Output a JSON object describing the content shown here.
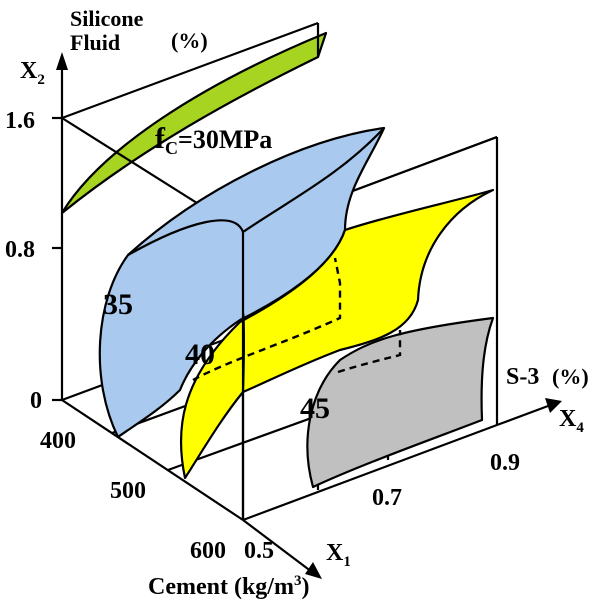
{
  "axes": {
    "x2": {
      "name": "X",
      "sub": "2",
      "label_line1": "Silicone",
      "label_line2": "Fluid",
      "unit": "(%)",
      "ticks": [
        "1.6",
        "0.8",
        "0"
      ]
    },
    "x1": {
      "name": "X",
      "sub": "1",
      "label": "Cement (kg/m",
      "label_sup": "3",
      "label_end": ")",
      "ticks": [
        "400",
        "500",
        "600"
      ]
    },
    "x4": {
      "name": "X",
      "sub": "4",
      "label": "S-3",
      "unit": "(%)",
      "ticks": [
        "0.5",
        "0.7",
        "0.9"
      ]
    }
  },
  "title": {
    "prefix": "f",
    "sub": "C",
    "rest": "=30MPa"
  },
  "contours": [
    {
      "label": "35",
      "color": "#a9c9ee"
    },
    {
      "label": "40",
      "color": "#ffff00"
    },
    {
      "label": "45",
      "color": "#c0c0c0"
    }
  ],
  "surface_30_color": "#a6d421"
}
